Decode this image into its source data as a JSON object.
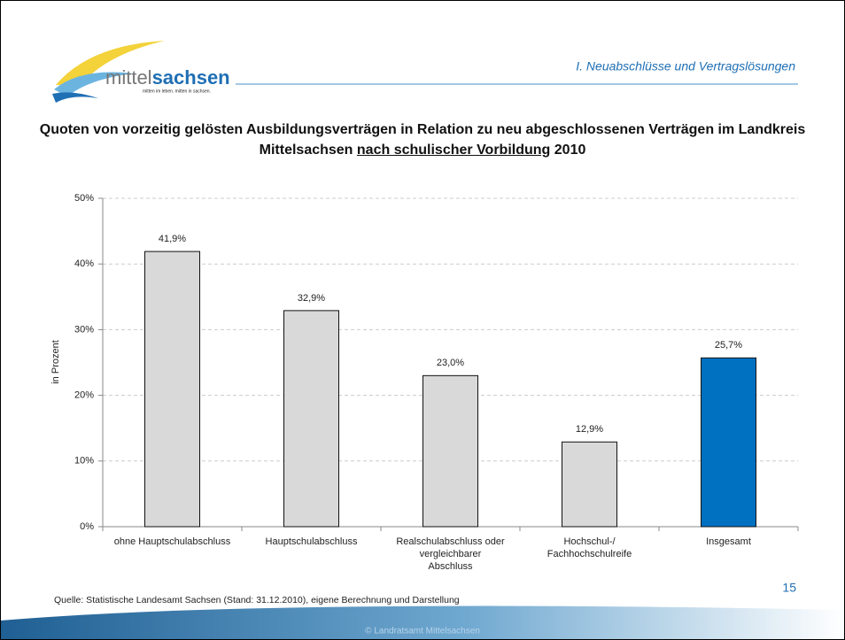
{
  "header": {
    "logo_part1": "mittel",
    "logo_part2": "sachsen",
    "tagline": "mitten im leben. mitten in sachsen.",
    "section": "I. Neuabschlüsse und Vertragslösungen"
  },
  "chart_data": {
    "type": "bar",
    "title": "Quoten von vorzeitig gelösten Ausbildungsverträgen in Relation zu neu abgeschlossenen Verträgen im Landkreis Mittelsachsen",
    "title_underlined": "nach schulischer Vorbildung",
    "title_year": "2010",
    "y_label": "in Prozent",
    "categories": [
      "ohne Hauptschulabschluss",
      "Hauptschulabschluss",
      "Realschulabschluss oder\nvergleichbarer\nAbschluss",
      "Hochschul-/\nFachhochschulreife",
      "Insgesamt"
    ],
    "values": [
      41.9,
      32.9,
      23.0,
      12.9,
      25.7
    ],
    "value_labels": [
      "41,9%",
      "32,9%",
      "23,0%",
      "12,9%",
      "25,7%"
    ],
    "colors": [
      "#d9d9d9",
      "#d9d9d9",
      "#d9d9d9",
      "#d9d9d9",
      "#0070c0"
    ],
    "ylim": [
      0,
      50
    ],
    "yticks": [
      {
        "value": 0,
        "label": "0%"
      },
      {
        "value": 10,
        "label": "10%"
      },
      {
        "value": 20,
        "label": "20%"
      },
      {
        "value": 30,
        "label": "30%"
      },
      {
        "value": 40,
        "label": "40%"
      },
      {
        "value": 50,
        "label": "50%"
      }
    ],
    "grid": true
  },
  "footer": {
    "source": "Quelle: Statistische Landesamt Sachsen (Stand: 31.12.2010), eigene Berechnung und Darstellung",
    "page": "15",
    "copyright": "© Landratsamt Mittelsachsen"
  }
}
